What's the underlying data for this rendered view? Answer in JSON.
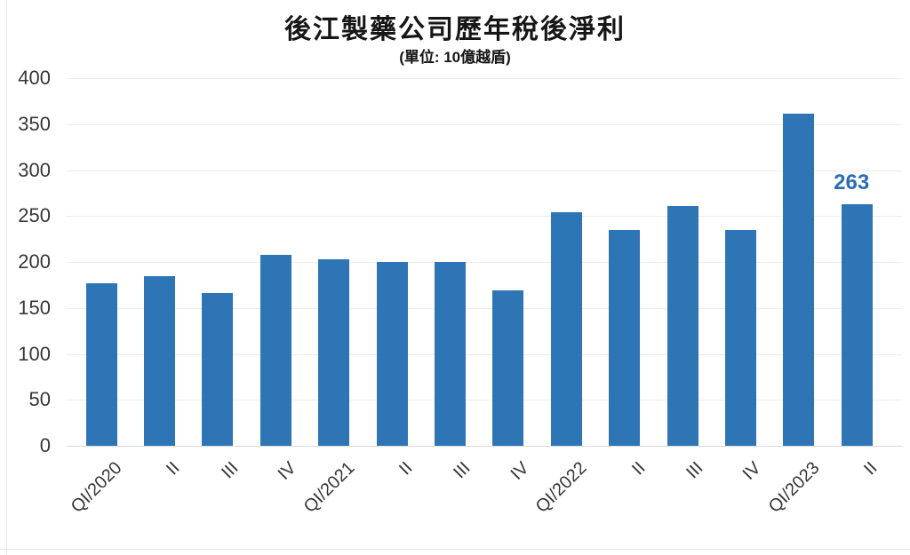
{
  "page": {
    "background": "#ffffff"
  },
  "chart_data": {
    "type": "bar",
    "title": "後江製藥公司歷年稅後淨利",
    "subtitle": "(單位: 10億越盾)",
    "categories": [
      "QI/2020",
      "II",
      "III",
      "IV",
      "QI/2021",
      "II",
      "III",
      "IV",
      "QI/2022",
      "II",
      "III",
      "IV",
      "QI/2023",
      "II"
    ],
    "values": [
      177,
      185,
      166,
      208,
      203,
      200,
      200,
      169,
      254,
      235,
      261,
      235,
      361,
      263
    ],
    "annotations": [
      {
        "index": 13,
        "text": "263"
      }
    ],
    "xlabel": "",
    "ylabel": "",
    "ylim": [
      0,
      400
    ],
    "yticks": [
      0,
      50,
      100,
      150,
      200,
      250,
      300,
      350,
      400
    ],
    "grid": "horizontal",
    "legend": "none",
    "bar_color": "#2e75b6",
    "annotation_color": "#2a6db5"
  }
}
